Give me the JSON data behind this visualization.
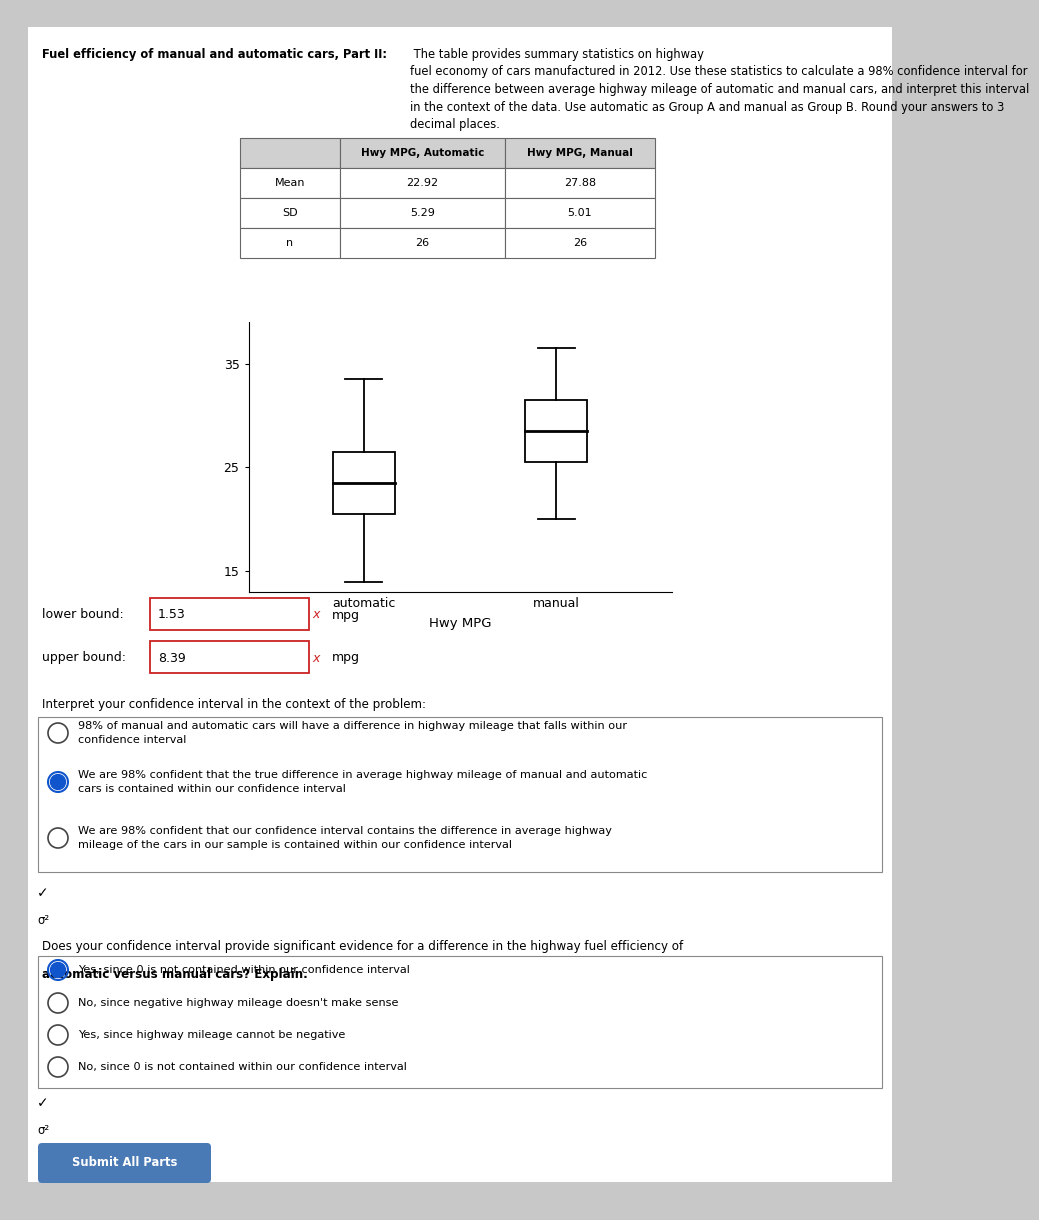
{
  "title_bold": "Fuel efficiency of manual and automatic cars, Part II:",
  "title_regular": " The table provides summary statistics on highway fuel economy of cars manufactured in 2012. Use these statistics to calculate a 98% confidence interval for the difference between average highway mileage of automatic and manual cars, and interpret this interval in the context of the data. Use automatic as Group A and manual as Group B. Round your answers to 3 decimal places.",
  "table_headers": [
    "",
    "Hwy MPG, Automatic",
    "Hwy MPG, Manual"
  ],
  "table_rows": [
    [
      "Mean",
      "22.92",
      "27.88"
    ],
    [
      "SD",
      "5.29",
      "5.01"
    ],
    [
      "n",
      "26",
      "26"
    ]
  ],
  "boxplot_auto": {
    "whisker_low": 14.0,
    "q1": 20.5,
    "median": 23.5,
    "q3": 26.5,
    "whisker_high": 33.5
  },
  "boxplot_manual": {
    "whisker_low": 20.0,
    "q1": 25.5,
    "median": 28.5,
    "q3": 31.5,
    "whisker_high": 36.5
  },
  "ylim": [
    13,
    39
  ],
  "yticks": [
    15,
    25,
    35
  ],
  "xlabel": "Hwy MPG",
  "xticklabels": [
    "automatic",
    "manual"
  ],
  "lower_bound": "1.53",
  "upper_bound": "8.39",
  "interpret_label": "Interpret your confidence interval in the context of the problem:",
  "interpret_options": [
    "98% of manual and automatic cars will have a difference in highway mileage that falls within our\nconfidence interval",
    "We are 98% confident that the true difference in average highway mileage of manual and automatic\ncars is contained within our confidence interval",
    "We are 98% confident that our confidence interval contains the difference in average highway\nmileage of the cars in our sample is contained within our confidence interval"
  ],
  "interpret_selected": 1,
  "does_label_bold": "Does your confidence interval provide significant evidence for a difference in the highway fuel efficiency of automatic versus manual cars? Explain.",
  "does_options": [
    "Yes, since 0 is not contained within our confidence interval",
    "No, since negative highway mileage doesn't make sense",
    "Yes, since highway mileage cannot be negative",
    "No, since 0 is not contained within our confidence interval"
  ],
  "does_selected": 0,
  "submit_btn_color": "#4a7ab5",
  "submit_btn_text": "Submit All Parts"
}
